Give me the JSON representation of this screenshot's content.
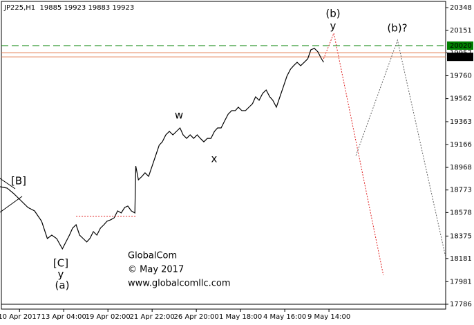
{
  "chart_data": {
    "type": "line",
    "title": "JP225,H1  19885 19923 19883 19923",
    "xlim": [
      -0.41,
      9.64
    ],
    "ylim": [
      17744,
      20402
    ],
    "xticks": [
      {
        "value": 0,
        "label": "10 Apr 2017"
      },
      {
        "value": 1,
        "label": "13 Apr 04:00"
      },
      {
        "value": 2,
        "label": "19 Apr 02:00"
      },
      {
        "value": 3,
        "label": "21 Apr 22:00"
      },
      {
        "value": 4,
        "label": "26 Apr 20:00"
      },
      {
        "value": 5,
        "label": "1 May 18:00"
      },
      {
        "value": 6,
        "label": "4 May 16:00"
      },
      {
        "value": 7,
        "label": "9 May 14:00"
      }
    ],
    "yticks": [
      20348,
      20151,
      19957,
      19760,
      19562,
      19363,
      19166,
      18968,
      18773,
      18578,
      18375,
      18181,
      17981,
      17786
    ],
    "series": [
      {
        "color": "#000000",
        "x": [
          -0.44,
          -0.28,
          -0.13,
          0.03,
          0.19,
          0.34,
          0.5,
          0.63,
          0.73,
          0.84,
          0.97,
          1.05,
          1.13,
          1.2,
          1.28,
          1.36,
          1.44,
          1.52,
          1.59,
          1.67,
          1.75,
          1.83,
          1.91,
          1.98,
          2.06,
          2.14,
          2.22,
          2.3,
          2.38,
          2.45,
          2.53,
          2.61,
          2.63,
          2.69,
          2.77,
          2.84,
          2.92,
          3,
          3.08,
          3.16,
          3.23,
          3.31,
          3.39,
          3.47,
          3.55,
          3.63,
          3.7,
          3.78,
          3.86,
          3.94,
          4.02,
          4.09,
          4.17,
          4.25,
          4.33,
          4.41,
          4.48,
          4.56,
          4.64,
          4.72,
          4.8,
          4.88,
          4.95,
          5.03,
          5.11,
          5.19,
          5.27,
          5.34,
          5.42,
          5.5,
          5.58,
          5.66,
          5.73,
          5.81,
          5.89,
          5.97,
          6.05,
          6.13,
          6.2,
          6.28,
          6.36,
          6.44,
          6.52,
          6.59,
          6.67,
          6.75,
          6.83,
          6.88
        ],
        "values": [
          18801,
          18789,
          18742,
          18682,
          18622,
          18592,
          18503,
          18353,
          18383,
          18353,
          18264,
          18324,
          18383,
          18443,
          18473,
          18383,
          18353,
          18324,
          18353,
          18413,
          18383,
          18443,
          18473,
          18503,
          18515,
          18532,
          18592,
          18574,
          18622,
          18634,
          18592,
          18574,
          18980,
          18861,
          18891,
          18921,
          18891,
          18980,
          19070,
          19160,
          19189,
          19249,
          19279,
          19249,
          19279,
          19309,
          19249,
          19219,
          19249,
          19219,
          19249,
          19219,
          19189,
          19219,
          19219,
          19279,
          19309,
          19309,
          19369,
          19428,
          19458,
          19458,
          19488,
          19458,
          19458,
          19488,
          19518,
          19578,
          19548,
          19607,
          19637,
          19578,
          19548,
          19488,
          19578,
          19667,
          19757,
          19816,
          19846,
          19876,
          19846,
          19876,
          19906,
          19984,
          19996,
          19966,
          19906,
          19876
        ]
      }
    ],
    "levels": [
      {
        "value": 20020,
        "label": "20020",
        "color": "#008000",
        "box_color": "#008000",
        "dashed": true
      },
      {
        "value": 19957,
        "color": "#e07040",
        "dashed": false
      },
      {
        "value": 19923,
        "label": "19923",
        "color": "#e07040",
        "box_color": "#000000",
        "dashed": false
      }
    ],
    "projections": [
      {
        "color": "#e02020",
        "x": [
          6.88,
          7.11,
          8.23
        ],
        "y": [
          19906,
          20127,
          18037
        ]
      },
      {
        "color": "#606060",
        "x": [
          7.61,
          8.55,
          9.64
        ],
        "y": [
          19070,
          20067,
          18192
        ]
      },
      {
        "color": "#e02020",
        "x": [
          1.28,
          2.64
        ],
        "y": [
          18545,
          18545
        ]
      }
    ],
    "annotations": [
      {
        "text": "(b)",
        "color": "#1a1a8c"
      },
      {
        "text": "y",
        "color": "#b02020"
      },
      {
        "text": "(b)?",
        "color": "#909090"
      },
      {
        "text": "w",
        "color": "#8b1a1a"
      },
      {
        "text": "x",
        "color": "#8b1a1a"
      },
      {
        "text": "[B]",
        "color": "#2e8b2e"
      },
      {
        "text": "[C]",
        "color": "#2e8b2e"
      },
      {
        "text": "y",
        "color": "#8b1a1a"
      },
      {
        "text": "(a)",
        "color": "#1a1a8c"
      }
    ],
    "watermark": [
      "GlobalCom",
      "© May 2017",
      "www.globalcomllc.com"
    ]
  }
}
